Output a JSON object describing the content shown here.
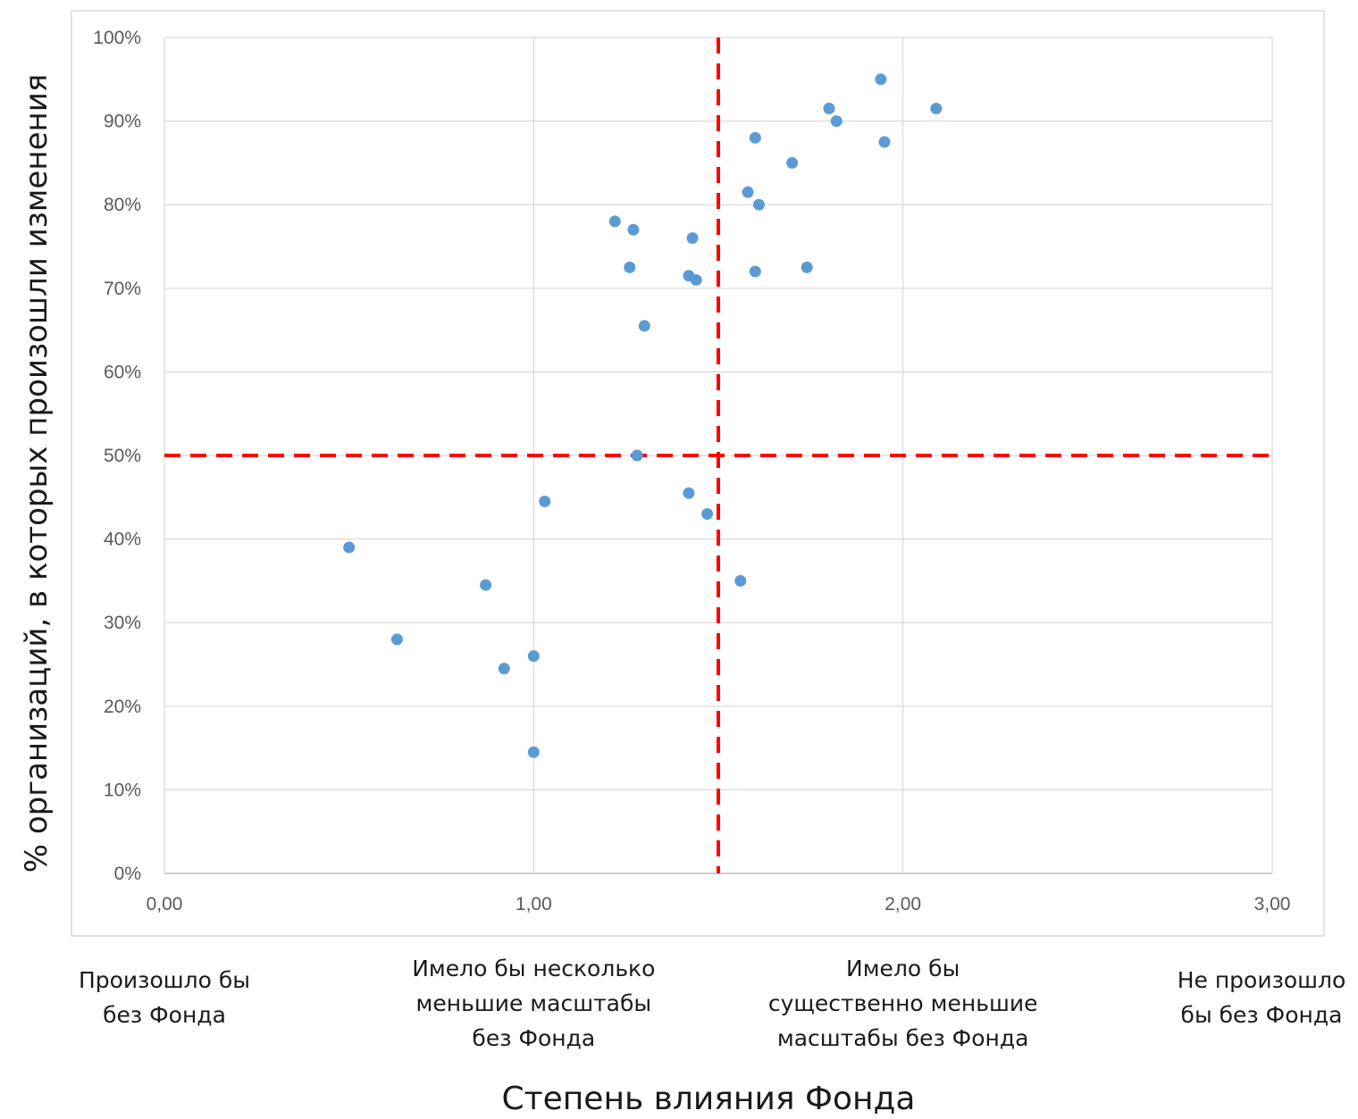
{
  "chart_data": {
    "type": "scatter",
    "title": "",
    "xlabel": "Степень влияния Фонда",
    "ylabel": "% организаций, в которых произошли изменения",
    "xlim": [
      0,
      3
    ],
    "ylim": [
      0,
      1
    ],
    "x_ticks": [
      "0,00",
      "1,00",
      "2,00",
      "3,00"
    ],
    "y_ticks": [
      "0%",
      "10%",
      "20%",
      "30%",
      "40%",
      "50%",
      "60%",
      "70%",
      "80%",
      "90%",
      "100%"
    ],
    "grid": true,
    "legend": "none",
    "x_categories": [
      {
        "x": 0,
        "lines": [
          "Произошло бы",
          "без Фонда"
        ]
      },
      {
        "x": 1,
        "lines": [
          "Имело бы несколько",
          "меньшие масштабы",
          "без Фонда"
        ]
      },
      {
        "x": 2,
        "lines": [
          "Имело бы",
          "существенно меньшие",
          "масштабы без Фонда"
        ]
      },
      {
        "x": 3,
        "lines": [
          "Не произошло",
          "бы без Фонда"
        ]
      }
    ],
    "reference_lines": {
      "x": 1.5,
      "y": 0.5,
      "color": "#ff0000",
      "style": "dashed"
    },
    "colors": {
      "points": "#5b9bd5",
      "grid": "#d9d9d9",
      "reference": "#ff0000"
    },
    "series": [
      {
        "points": [
          {
            "x": 0.5,
            "y": 0.39
          },
          {
            "x": 0.63,
            "y": 0.28
          },
          {
            "x": 0.87,
            "y": 0.345
          },
          {
            "x": 0.92,
            "y": 0.245
          },
          {
            "x": 1.0,
            "y": 0.26
          },
          {
            "x": 1.0,
            "y": 0.145
          },
          {
            "x": 1.03,
            "y": 0.445
          },
          {
            "x": 1.22,
            "y": 0.78
          },
          {
            "x": 1.27,
            "y": 0.77
          },
          {
            "x": 1.26,
            "y": 0.725
          },
          {
            "x": 1.3,
            "y": 0.655
          },
          {
            "x": 1.28,
            "y": 0.5
          },
          {
            "x": 1.43,
            "y": 0.76
          },
          {
            "x": 1.42,
            "y": 0.715
          },
          {
            "x": 1.44,
            "y": 0.71
          },
          {
            "x": 1.42,
            "y": 0.455
          },
          {
            "x": 1.47,
            "y": 0.43
          },
          {
            "x": 1.56,
            "y": 0.35
          },
          {
            "x": 1.6,
            "y": 0.88
          },
          {
            "x": 1.58,
            "y": 0.815
          },
          {
            "x": 1.61,
            "y": 0.8
          },
          {
            "x": 1.6,
            "y": 0.72
          },
          {
            "x": 1.7,
            "y": 0.85
          },
          {
            "x": 1.74,
            "y": 0.725
          },
          {
            "x": 1.8,
            "y": 0.915
          },
          {
            "x": 1.82,
            "y": 0.9
          },
          {
            "x": 1.94,
            "y": 0.95
          },
          {
            "x": 1.95,
            "y": 0.875
          },
          {
            "x": 2.09,
            "y": 0.915
          }
        ]
      }
    ]
  }
}
